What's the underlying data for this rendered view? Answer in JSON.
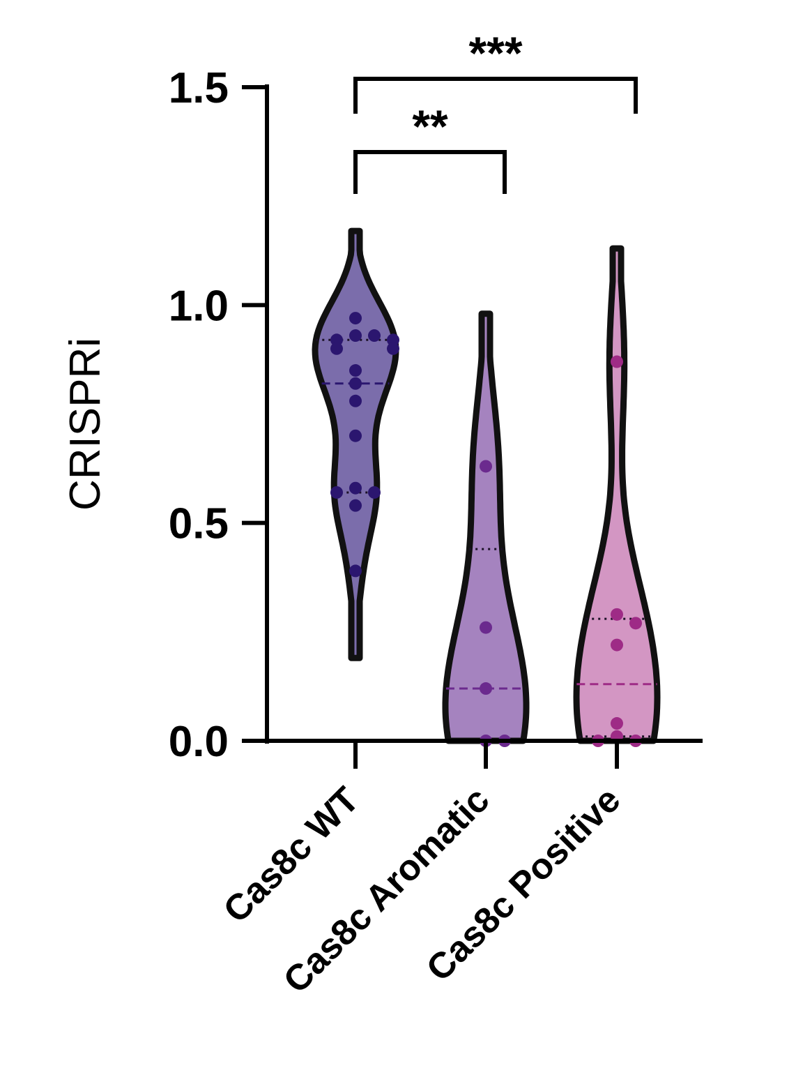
{
  "chart_data": {
    "type": "violin",
    "ylabel": "CRISPRi",
    "ylim": [
      0,
      1.5
    ],
    "yticks": [
      0.0,
      0.5,
      1.0,
      1.5
    ],
    "ytick_labels": [
      "0.0",
      "0.5",
      "1.0",
      "1.5"
    ],
    "grid": false,
    "categories": [
      "Cas8c WT",
      "Cas8c Aromatic",
      "Cas8c Positive"
    ],
    "series": [
      {
        "category": "Cas8c WT",
        "fill": "#7b6dab",
        "point_color": "#2b166f",
        "points": [
          0.97,
          0.93,
          0.93,
          0.92,
          0.92,
          0.9,
          0.9,
          0.85,
          0.82,
          0.78,
          0.7,
          0.58,
          0.57,
          0.57,
          0.54,
          0.39
        ],
        "median": 0.82,
        "quartiles": [
          0.57,
          0.92
        ],
        "range": [
          0.19,
          1.17
        ]
      },
      {
        "category": "Cas8c Aromatic",
        "fill": "#a583bf",
        "point_color": "#6b2a8e",
        "points": [
          0.63,
          0.26,
          0.12,
          0.0,
          0.0
        ],
        "median": 0.12,
        "quartiles": [
          0.0,
          0.44
        ],
        "range": [
          0.0,
          0.98
        ]
      },
      {
        "category": "Cas8c Positive",
        "fill": "#d396c3",
        "point_color": "#9e2b86",
        "points": [
          0.87,
          0.29,
          0.27,
          0.22,
          0.04,
          0.01,
          0.0,
          0.0
        ],
        "median": 0.13,
        "quartiles": [
          0.01,
          0.28
        ],
        "range": [
          0.0,
          1.13
        ]
      }
    ],
    "annotations": [
      {
        "label": "**",
        "from": "Cas8c WT",
        "to": "Cas8c Aromatic"
      },
      {
        "label": "***",
        "from": "Cas8c WT",
        "to": "Cas8c Positive"
      }
    ]
  }
}
